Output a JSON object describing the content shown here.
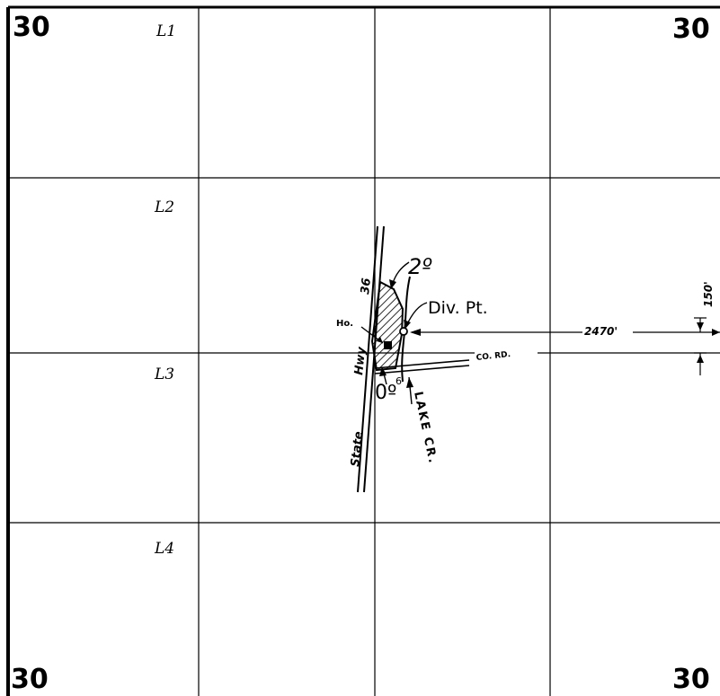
{
  "section_numbers": {
    "top_left": "30",
    "top_right": "30",
    "bottom_left": "30",
    "bottom_right": "30"
  },
  "lots": [
    "L1",
    "L2",
    "L3",
    "L4"
  ],
  "annotations": {
    "highway_number": "36",
    "highway_prefix": "State",
    "highway_word": "Hwy",
    "house": "Ho.",
    "acres_2": "2º",
    "acres_0": "0º",
    "acres_0_sup": "6",
    "diversion_point": "Div. Pt.",
    "distance_east": "2470'",
    "distance_north": "150'",
    "county_road": "CO. RD.",
    "creek": "LAKE CR."
  }
}
